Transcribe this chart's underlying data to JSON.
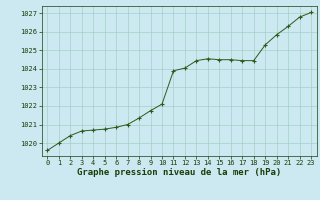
{
  "x": [
    0,
    1,
    2,
    3,
    4,
    5,
    6,
    7,
    8,
    9,
    10,
    11,
    12,
    13,
    14,
    15,
    16,
    17,
    18,
    19,
    20,
    21,
    22,
    23
  ],
  "y": [
    1019.6,
    1020.0,
    1020.4,
    1020.65,
    1020.7,
    1020.75,
    1020.85,
    1021.0,
    1021.35,
    1021.75,
    1022.1,
    1023.9,
    1024.05,
    1024.45,
    1024.55,
    1024.5,
    1024.5,
    1024.45,
    1024.45,
    1025.3,
    1025.85,
    1026.3,
    1026.8,
    1027.05
  ],
  "line_color": "#2d5a1b",
  "marker_color": "#2d5a1b",
  "bg_color": "#cce8f0",
  "grid_color": "#99ccbb",
  "xlabel": "Graphe pression niveau de la mer (hPa)",
  "xlabel_color": "#1a3d0a",
  "tick_color": "#1a3d0a",
  "ylim": [
    1019.3,
    1027.4
  ],
  "xlim": [
    -0.5,
    23.5
  ],
  "yticks": [
    1020,
    1021,
    1022,
    1023,
    1024,
    1025,
    1026,
    1027
  ],
  "xticks": [
    0,
    1,
    2,
    3,
    4,
    5,
    6,
    7,
    8,
    9,
    10,
    11,
    12,
    13,
    14,
    15,
    16,
    17,
    18,
    19,
    20,
    21,
    22,
    23
  ],
  "xtick_labels": [
    "0",
    "1",
    "2",
    "3",
    "4",
    "5",
    "6",
    "7",
    "8",
    "9",
    "10",
    "11",
    "12",
    "13",
    "14",
    "15",
    "16",
    "17",
    "18",
    "19",
    "20",
    "21",
    "22",
    "23"
  ],
  "tick_fontsize": 5,
  "xlabel_fontsize": 6.5,
  "linewidth": 0.7,
  "markersize": 3.5,
  "markeredgewidth": 0.8
}
